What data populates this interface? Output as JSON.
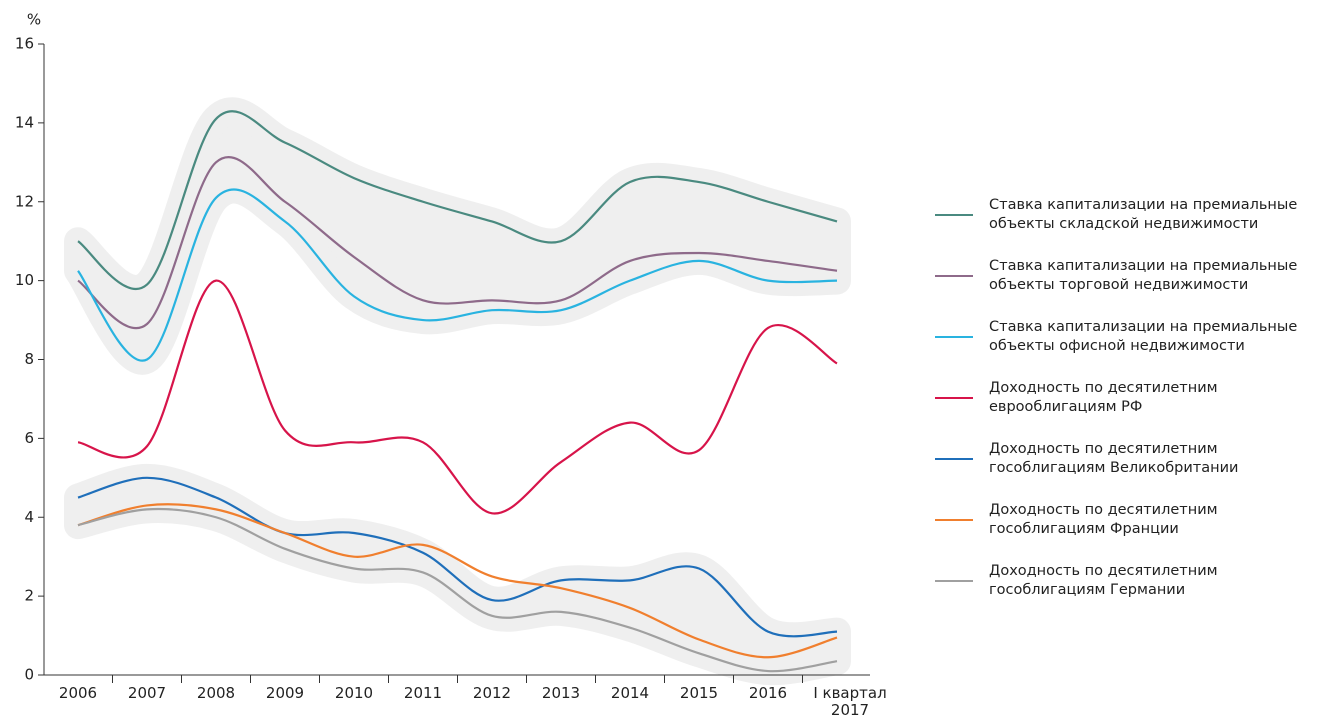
{
  "chart_data": {
    "type": "line",
    "y_label": "%",
    "categories": [
      "2006",
      "2007",
      "2008",
      "2009",
      "2010",
      "2011",
      "2012",
      "2013",
      "2014",
      "2015",
      "2016",
      "I квартал 2017"
    ],
    "ylim": [
      0,
      16
    ],
    "yticks": [
      0,
      2,
      4,
      6,
      8,
      10,
      12,
      14,
      16
    ],
    "series": [
      {
        "name": "Ставка капитализации на премиальные объекты складской недвижимости",
        "color": "#4a8a80",
        "values": [
          11.0,
          9.9,
          14.1,
          13.5,
          12.6,
          12.0,
          11.5,
          11.0,
          12.5,
          12.5,
          12.0,
          11.5
        ]
      },
      {
        "name": "Ставка капитализации на премиальные объекты торговой недвижимости",
        "color": "#8e6a8a",
        "values": [
          10.0,
          8.9,
          13.0,
          12.0,
          10.6,
          9.5,
          9.5,
          9.5,
          10.5,
          10.7,
          10.5,
          10.25
        ]
      },
      {
        "name": "Ставка капитализации на премиальные объекты офисной недвижимости",
        "color": "#29b3e0",
        "values": [
          10.25,
          8.0,
          12.1,
          11.5,
          9.6,
          9.0,
          9.25,
          9.25,
          10.0,
          10.5,
          10.0,
          10.0
        ]
      },
      {
        "name": "Доходность по десятилетним еврооблигациям РФ",
        "color": "#d7144a",
        "values": [
          5.9,
          5.8,
          10.0,
          6.2,
          5.9,
          5.9,
          4.1,
          5.4,
          6.4,
          5.7,
          8.8,
          7.9
        ]
      },
      {
        "name": "Доходность по десятилетним гособлигациям Великобритании",
        "color": "#1f6fba",
        "values": [
          4.5,
          5.0,
          4.5,
          3.6,
          3.6,
          3.1,
          1.9,
          2.4,
          2.4,
          2.7,
          1.1,
          1.1
        ]
      },
      {
        "name": "Доходность по десятилетним гособлигациям Франции",
        "color": "#f07f2e",
        "values": [
          3.8,
          4.3,
          4.2,
          3.6,
          3.0,
          3.3,
          2.5,
          2.2,
          1.7,
          0.9,
          0.45,
          0.95
        ]
      },
      {
        "name": "Доходность по десятилетним гособлигациям Германии",
        "color": "#a0a0a0",
        "values": [
          3.8,
          4.2,
          4.0,
          3.2,
          2.7,
          2.6,
          1.5,
          1.6,
          1.2,
          0.55,
          0.1,
          0.35
        ]
      }
    ]
  }
}
